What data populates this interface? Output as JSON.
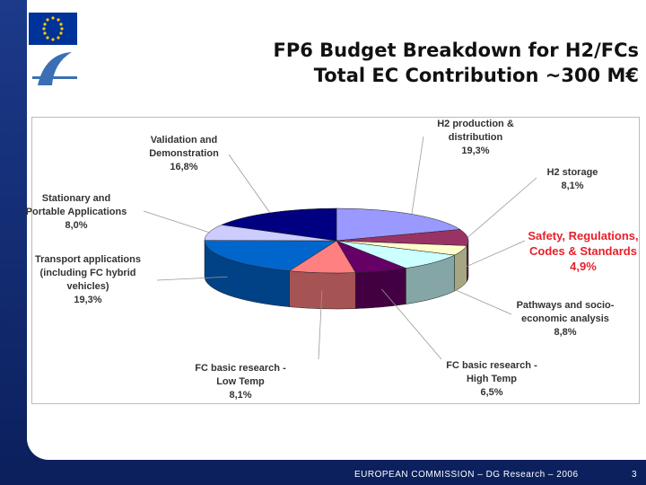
{
  "slide": {
    "title": [
      "FP6 Budget Breakdown for H2/FCs",
      "Total EC Contribution ~300 M€"
    ],
    "footer": "EUROPEAN COMMISSION – DG Research – 2006",
    "page_number": "3"
  },
  "chart_data": {
    "type": "pie3d",
    "categories": [
      "H2 production & distribution",
      "H2 storage",
      "Safety, Regulations, Codes & Standards",
      "Pathways and socio-economic analysis",
      "FC basic research - High Temp",
      "FC basic research - Low Temp",
      "Transport applications (including FC hybrid vehicles)",
      "Stationary and Portable Applications",
      "Validation and Demonstration"
    ],
    "values": [
      19.3,
      8.1,
      4.9,
      8.8,
      6.5,
      8.1,
      19.3,
      8.0,
      16.8
    ],
    "value_labels": [
      "19,3%",
      "8,1%",
      "4,9%",
      "8,8%",
      "6,5%",
      "8,1%",
      "19,3%",
      "8,0%",
      "16,8%"
    ],
    "colors": [
      "#9999ff",
      "#993366",
      "#ffffcc",
      "#ccffff",
      "#660066",
      "#ff8080",
      "#0066cc",
      "#ccccff",
      "#000080"
    ],
    "label_colors": [
      "#333333",
      "#333333",
      "#e8202a",
      "#333333",
      "#333333",
      "#333333",
      "#333333",
      "#333333",
      "#333333"
    ]
  }
}
